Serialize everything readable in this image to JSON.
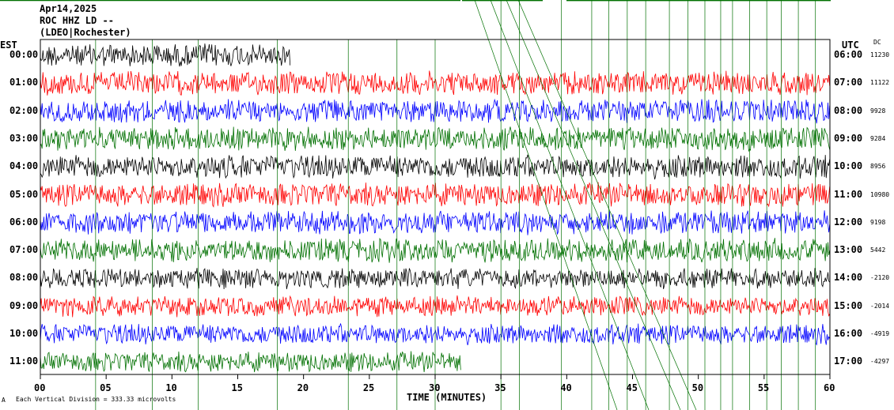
{
  "header": {
    "date": "Apr14,2025",
    "station": "ROC HHZ LD --",
    "location": "(LDEO|Rochester)"
  },
  "left_axis_label": "EST",
  "right_axis_label": "UTC",
  "dc_label": "DC",
  "footer_note": "Each Vertical Division = 333.33 microvolts",
  "footer_mark": "A",
  "colors": {
    "black": "#000000",
    "red": "#ff0000",
    "blue": "#0000ff",
    "green": "#007000",
    "marker": "#007000"
  },
  "chart_data": {
    "type": "line",
    "xlabel": "TIME (MINUTES)",
    "x_ticks": [
      "00",
      "05",
      "10",
      "15",
      "20",
      "25",
      "30",
      "35",
      "40",
      "45",
      "50",
      "55",
      "60"
    ],
    "xlim": [
      0,
      60
    ],
    "rows": [
      {
        "est": "00:00",
        "utc": "06:00",
        "dc": "11230",
        "color": "black"
      },
      {
        "est": "01:00",
        "utc": "07:00",
        "dc": "11122",
        "color": "red"
      },
      {
        "est": "02:00",
        "utc": "08:00",
        "dc": "9928",
        "color": "blue"
      },
      {
        "est": "03:00",
        "utc": "09:00",
        "dc": "9284",
        "color": "green"
      },
      {
        "est": "04:00",
        "utc": "10:00",
        "dc": "8956",
        "color": "black"
      },
      {
        "est": "05:00",
        "utc": "11:00",
        "dc": "10980",
        "color": "red"
      },
      {
        "est": "06:00",
        "utc": "12:00",
        "dc": "9198",
        "color": "blue"
      },
      {
        "est": "07:00",
        "utc": "13:00",
        "dc": "5442",
        "color": "green"
      },
      {
        "est": "08:00",
        "utc": "14:00",
        "dc": "-2120",
        "color": "black"
      },
      {
        "est": "09:00",
        "utc": "15:00",
        "dc": "-2014",
        "color": "red"
      },
      {
        "est": "10:00",
        "utc": "16:00",
        "dc": "-4919",
        "color": "blue"
      },
      {
        "est": "11:00",
        "utc": "17:00",
        "dc": "-4297",
        "color": "green"
      }
    ],
    "trace_end_minutes": [
      19,
      60,
      60,
      60,
      60,
      60,
      60,
      60,
      60,
      60,
      60,
      32
    ],
    "grid": false,
    "legend": "none"
  }
}
